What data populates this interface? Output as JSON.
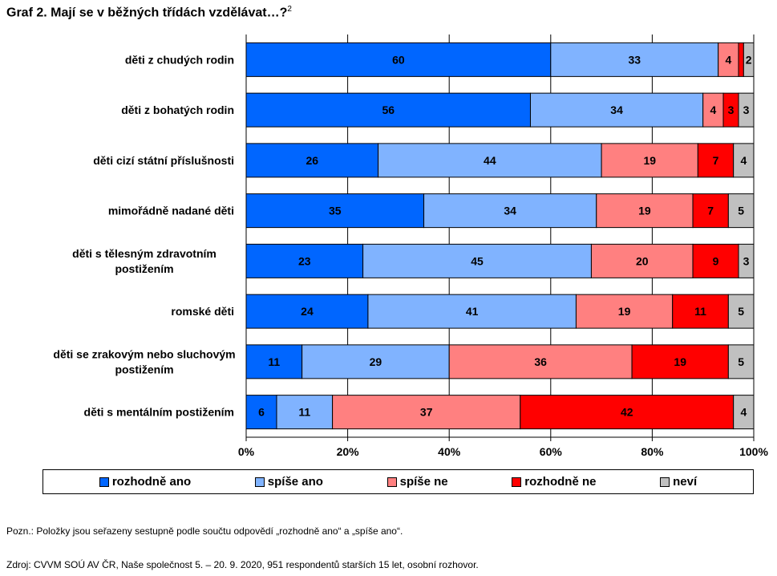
{
  "title": {
    "text": "Graf 2. Mají se v běžných třídách vzdělávat…?",
    "footnote": "2"
  },
  "note": "Pozn.: Položky jsou seřazeny sestupně podle součtu odpovědí „rozhodně ano“ a „spíše ano“.",
  "source": "Zdroj: CVVM SOÚ AV ČR, Naše společnost 5. – 20. 9. 2020, 951 respondentů starších 15 let, osobní rozhovor.",
  "colors": {
    "rozhodne_ano": "#0066ff",
    "spise_ano": "#80b3ff",
    "spise_ne": "#ff8080",
    "rozhodne_ne": "#ff0000",
    "nevi": "#c0c0c0"
  },
  "chart_data": {
    "type": "bar",
    "orientation": "horizontal",
    "stacked": "percent",
    "categories": [
      [
        "děti z chudých rodin"
      ],
      [
        "děti z bohatých rodin"
      ],
      [
        "děti cizí státní příslušnosti"
      ],
      [
        "mimořádně nadané děti"
      ],
      [
        "děti s tělesným zdravotním",
        "postižením"
      ],
      [
        "romské děti"
      ],
      [
        "děti se zrakovým nebo sluchovým",
        "postižením"
      ],
      [
        "děti s mentálním postižením"
      ]
    ],
    "series": [
      {
        "name": "rozhodně ano",
        "color_key": "rozhodne_ano",
        "values": [
          60,
          56,
          26,
          35,
          23,
          24,
          11,
          6
        ]
      },
      {
        "name": "spíše ano",
        "color_key": "spise_ano",
        "values": [
          33,
          34,
          44,
          34,
          45,
          41,
          29,
          11
        ]
      },
      {
        "name": "spíše ne",
        "color_key": "spise_ne",
        "values": [
          4,
          4,
          19,
          19,
          20,
          19,
          36,
          37
        ]
      },
      {
        "name": "rozhodně ne",
        "color_key": "rozhodne_ne",
        "values": [
          1,
          3,
          7,
          7,
          9,
          11,
          19,
          42
        ]
      },
      {
        "name": "neví",
        "color_key": "nevi",
        "values": [
          2,
          3,
          4,
          5,
          3,
          5,
          5,
          4
        ]
      }
    ],
    "data_labels": [
      [
        "60",
        "33",
        "4",
        "",
        "2"
      ],
      [
        "56",
        "34",
        "4",
        "3",
        "3"
      ],
      [
        "26",
        "44",
        "19",
        "7",
        "4"
      ],
      [
        "35",
        "34",
        "19",
        "7",
        "5"
      ],
      [
        "23",
        "45",
        "20",
        "9",
        "3"
      ],
      [
        "24",
        "41",
        "19",
        "11",
        "5"
      ],
      [
        "11",
        "29",
        "36",
        "19",
        "5"
      ],
      [
        "6",
        "11",
        "37",
        "42",
        "4"
      ]
    ],
    "xlim": [
      0,
      100
    ],
    "xticks": [
      "0%",
      "20%",
      "40%",
      "60%",
      "80%",
      "100%"
    ],
    "grid": true,
    "legend_position": "bottom"
  }
}
